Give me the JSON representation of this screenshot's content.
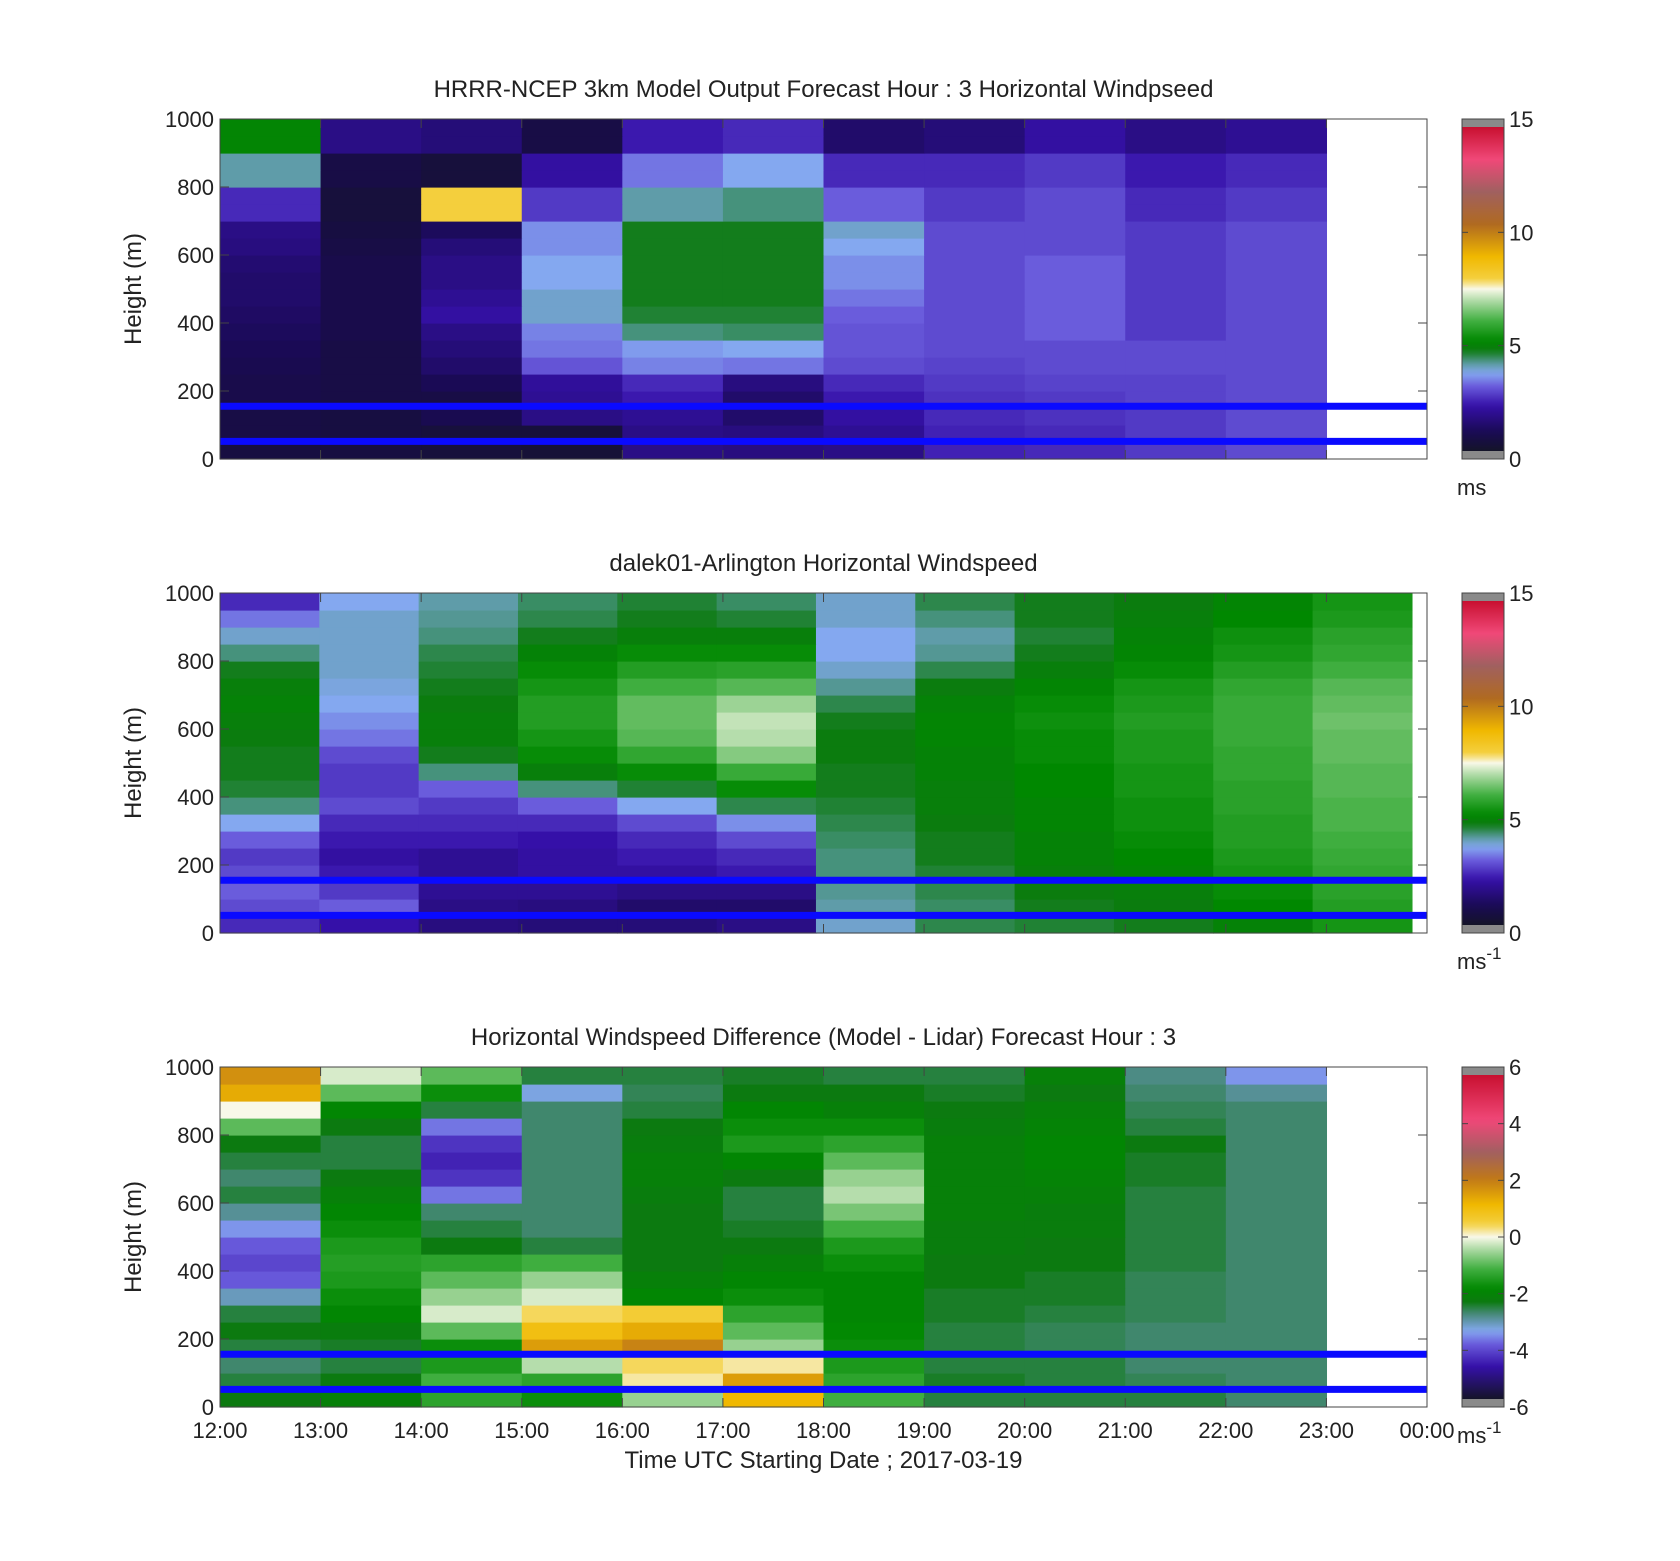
{
  "chart_data": [
    {
      "type": "heatmap",
      "title": "HRRR-NCEP 3km Model Output   Forecast Hour : 3 Horizontal Windpseed",
      "ylabel": "Height (m)",
      "xlabel": "",
      "ylim": [
        0,
        1000
      ],
      "y_ticks": [
        "0",
        "200",
        "400",
        "600",
        "800",
        "1000"
      ],
      "x_range_hours": [
        12,
        24
      ],
      "data_end_hour": 23,
      "colorbar": {
        "min": 0,
        "max": 15,
        "ticks": [
          "0",
          "5",
          "10",
          "15"
        ],
        "unit": "ms",
        "unit_sup": ""
      },
      "horizontal_lines_m": [
        155,
        52
      ],
      "line_color": "#0a0aff",
      "x_hours": [
        12,
        13,
        14,
        15,
        16,
        17,
        18,
        19,
        20,
        21,
        22
      ],
      "y_levels_m": [
        25,
        75,
        125,
        175,
        225,
        275,
        325,
        375,
        425,
        475,
        525,
        575,
        625,
        675,
        725,
        775,
        825,
        875,
        925,
        975
      ],
      "z": [
        [
          0.5,
          0.5,
          0.4,
          0.3,
          1.6,
          1.5,
          1.6,
          2.3,
          2.4,
          2.6,
          2.8
        ],
        [
          0.6,
          0.5,
          0.4,
          0.4,
          1.6,
          1.5,
          1.8,
          2.3,
          2.4,
          2.6,
          2.8
        ],
        [
          0.6,
          0.5,
          0.8,
          1.6,
          1.8,
          1.2,
          2.0,
          2.4,
          2.5,
          2.6,
          2.8
        ],
        [
          0.7,
          0.6,
          0.6,
          1.8,
          2.2,
          1.2,
          2.2,
          2.5,
          2.6,
          2.7,
          2.8
        ],
        [
          0.7,
          0.6,
          0.9,
          1.9,
          2.4,
          1.5,
          2.4,
          2.6,
          2.7,
          2.7,
          2.8
        ],
        [
          0.8,
          0.6,
          1.2,
          2.9,
          3.3,
          3.2,
          2.8,
          2.7,
          2.8,
          2.8,
          2.8
        ],
        [
          0.9,
          0.6,
          1.4,
          3.2,
          3.5,
          3.6,
          2.9,
          2.8,
          2.8,
          2.8,
          2.8
        ],
        [
          1.0,
          0.7,
          1.6,
          3.3,
          4.2,
          4.3,
          2.9,
          2.8,
          3.0,
          2.6,
          2.8
        ],
        [
          1.1,
          0.7,
          2.0,
          3.8,
          4.5,
          4.5,
          3.0,
          2.8,
          3.0,
          2.6,
          2.8
        ],
        [
          1.2,
          0.7,
          1.8,
          3.8,
          4.6,
          4.6,
          3.2,
          2.8,
          3.0,
          2.6,
          2.8
        ],
        [
          1.2,
          0.7,
          1.6,
          3.6,
          4.6,
          4.6,
          3.4,
          2.8,
          3.0,
          2.6,
          2.8
        ],
        [
          1.3,
          0.7,
          1.6,
          3.6,
          4.6,
          4.6,
          3.4,
          2.8,
          3.0,
          2.6,
          2.8
        ],
        [
          1.5,
          0.6,
          1.4,
          3.4,
          4.6,
          4.6,
          3.6,
          2.8,
          2.8,
          2.6,
          2.8
        ],
        [
          1.6,
          0.5,
          1.0,
          3.4,
          4.6,
          4.6,
          3.8,
          2.8,
          2.8,
          2.6,
          2.8
        ],
        [
          2.4,
          0.4,
          8.0,
          2.6,
          4.0,
          4.2,
          3.0,
          2.6,
          2.8,
          2.4,
          2.6
        ],
        [
          2.4,
          0.4,
          8.0,
          2.6,
          4.0,
          4.2,
          3.0,
          2.6,
          2.8,
          2.4,
          2.6
        ],
        [
          4.0,
          0.6,
          0.4,
          2.0,
          3.2,
          3.6,
          2.4,
          2.4,
          2.6,
          2.2,
          2.4
        ],
        [
          4.0,
          0.6,
          0.4,
          2.0,
          3.2,
          3.6,
          2.4,
          2.4,
          2.6,
          2.2,
          2.4
        ],
        [
          5.0,
          1.6,
          1.4,
          0.6,
          2.2,
          2.4,
          1.2,
          1.4,
          2.0,
          1.6,
          1.8
        ],
        [
          5.0,
          1.6,
          1.4,
          0.6,
          2.2,
          2.4,
          1.2,
          1.4,
          2.0,
          1.6,
          1.8
        ]
      ]
    },
    {
      "type": "heatmap",
      "title": "dalek01-Arlington  Horizontal Windspeed",
      "ylabel": "Height (m)",
      "xlabel": "",
      "ylim": [
        0,
        1000
      ],
      "y_ticks": [
        "0",
        "200",
        "400",
        "600",
        "800",
        "1000"
      ],
      "x_range_hours": [
        12,
        24
      ],
      "data_end_hour": 23.85,
      "colorbar": {
        "min": 0,
        "max": 15,
        "ticks": [
          "0",
          "5",
          "10",
          "15"
        ],
        "unit": "ms",
        "unit_sup": "-1"
      },
      "horizontal_lines_m": [
        155,
        52
      ],
      "line_color": "#0a0aff",
      "x_hours": [
        12,
        13,
        14,
        15,
        16,
        17,
        18,
        19,
        20,
        21,
        22,
        23
      ],
      "y_levels_m": [
        25,
        75,
        125,
        175,
        225,
        275,
        325,
        375,
        425,
        475,
        525,
        575,
        625,
        675,
        725,
        775,
        825,
        875,
        925,
        975
      ],
      "z": [
        [
          2.4,
          2.1,
          1.5,
          1.4,
          1.4,
          1.6,
          3.8,
          4.4,
          4.5,
          4.6,
          4.9,
          5.4
        ],
        [
          2.8,
          3.0,
          1.6,
          1.5,
          1.2,
          1.2,
          4.0,
          4.3,
          4.6,
          4.7,
          5.1,
          5.6
        ],
        [
          3.0,
          2.6,
          1.8,
          1.8,
          1.6,
          1.6,
          4.1,
          4.4,
          4.7,
          4.8,
          5.2,
          5.7
        ],
        [
          2.8,
          2.2,
          1.8,
          2.0,
          2.0,
          2.2,
          4.2,
          4.5,
          4.8,
          5.0,
          5.4,
          5.8
        ],
        [
          2.6,
          2.0,
          1.8,
          2.0,
          2.2,
          2.4,
          4.2,
          4.6,
          4.9,
          5.1,
          5.5,
          5.9
        ],
        [
          3.0,
          2.2,
          2.2,
          2.1,
          2.4,
          2.8,
          4.3,
          4.6,
          4.9,
          5.2,
          5.6,
          6.0
        ],
        [
          3.6,
          2.4,
          2.4,
          2.4,
          2.8,
          3.4,
          4.4,
          4.7,
          5.0,
          5.3,
          5.6,
          6.1
        ],
        [
          4.2,
          2.8,
          2.6,
          3.0,
          3.6,
          4.4,
          4.5,
          4.8,
          5.0,
          5.3,
          5.7,
          6.1
        ],
        [
          4.5,
          2.6,
          3.0,
          4.2,
          4.5,
          5.2,
          4.6,
          4.8,
          5.1,
          5.4,
          5.7,
          6.2
        ],
        [
          4.6,
          2.6,
          4.2,
          4.8,
          5.2,
          5.9,
          4.6,
          4.9,
          5.1,
          5.4,
          5.8,
          6.2
        ],
        [
          4.6,
          2.8,
          4.6,
          5.2,
          5.8,
          6.6,
          4.7,
          4.9,
          5.2,
          5.5,
          5.8,
          6.3
        ],
        [
          4.7,
          3.2,
          4.8,
          5.4,
          6.2,
          7.0,
          4.7,
          5.0,
          5.2,
          5.5,
          5.9,
          6.3
        ],
        [
          4.8,
          3.4,
          4.8,
          5.6,
          6.3,
          7.1,
          4.6,
          5.0,
          5.3,
          5.6,
          5.9,
          6.4
        ],
        [
          4.9,
          3.6,
          4.7,
          5.6,
          6.3,
          6.8,
          4.4,
          4.9,
          5.2,
          5.5,
          5.9,
          6.3
        ],
        [
          4.8,
          3.7,
          4.6,
          5.4,
          6.0,
          6.2,
          4.1,
          4.7,
          5.0,
          5.4,
          5.8,
          6.2
        ],
        [
          4.6,
          3.8,
          4.5,
          5.2,
          5.6,
          5.7,
          3.8,
          4.4,
          4.8,
          5.2,
          5.6,
          6.0
        ],
        [
          4.2,
          3.8,
          4.4,
          4.9,
          5.2,
          5.2,
          3.6,
          4.1,
          4.6,
          5.0,
          5.4,
          5.8
        ],
        [
          3.8,
          3.8,
          4.2,
          4.6,
          4.8,
          4.8,
          3.6,
          4.0,
          4.5,
          4.9,
          5.3,
          5.7
        ],
        [
          3.2,
          3.8,
          4.1,
          4.4,
          4.6,
          4.5,
          3.8,
          4.2,
          4.6,
          4.8,
          5.1,
          5.5
        ],
        [
          2.4,
          3.6,
          4.0,
          4.3,
          4.5,
          4.3,
          3.8,
          4.4,
          4.6,
          4.7,
          5.0,
          5.4
        ]
      ]
    },
    {
      "type": "heatmap",
      "title": "Horizontal Windspeed Difference (Model - Lidar) Forecast Hour : 3",
      "ylabel": "Height (m)",
      "xlabel": "Time UTC  Starting Date ; 2017-03-19",
      "ylim": [
        0,
        1000
      ],
      "y_ticks": [
        "0",
        "200",
        "400",
        "600",
        "800",
        "1000"
      ],
      "x_range_hours": [
        12,
        24
      ],
      "x_ticks": [
        "12:00",
        "13:00",
        "14:00",
        "15:00",
        "16:00",
        "17:00",
        "18:00",
        "19:00",
        "20:00",
        "21:00",
        "22:00",
        "23:00",
        "00:00"
      ],
      "data_end_hour": 23,
      "colorbar": {
        "min": -6,
        "max": 6,
        "ticks": [
          "-6",
          "-4",
          "-2",
          "0",
          "2",
          "4",
          "6"
        ],
        "unit": "ms",
        "unit_sup": "-1"
      },
      "horizontal_lines_m": [
        155,
        52
      ],
      "line_color": "#0a0aff",
      "x_hours": [
        12,
        13,
        14,
        15,
        16,
        17,
        18,
        19,
        20,
        21,
        22
      ],
      "y_levels_m": [
        25,
        75,
        125,
        175,
        225,
        275,
        325,
        375,
        425,
        475,
        525,
        575,
        625,
        675,
        725,
        775,
        825,
        875,
        925,
        975
      ],
      "z": [
        [
          -2.4,
          -2.2,
          -1.4,
          -1.8,
          -0.6,
          1.2,
          -1.2,
          -2.6,
          -2.6,
          -2.6,
          -2.8
        ],
        [
          -2.6,
          -2.4,
          -1.2,
          -1.4,
          0.2,
          1.6,
          -1.4,
          -2.5,
          -2.6,
          -2.7,
          -2.8
        ],
        [
          -2.8,
          -2.6,
          -1.6,
          -0.4,
          0.4,
          0.2,
          -1.6,
          -2.6,
          -2.6,
          -2.8,
          -2.8
        ],
        [
          -2.6,
          -2.5,
          -1.8,
          1.6,
          2.0,
          -0.6,
          -1.8,
          -2.6,
          -2.7,
          -2.8,
          -2.8
        ],
        [
          -2.4,
          -2.3,
          -1.0,
          1.0,
          1.4,
          -1.0,
          -1.9,
          -2.6,
          -2.7,
          -2.8,
          -2.8
        ],
        [
          -2.6,
          -2.0,
          -0.2,
          0.4,
          0.6,
          -1.4,
          -2.0,
          -2.5,
          -2.6,
          -2.7,
          -2.8
        ],
        [
          -3.2,
          -1.8,
          -0.6,
          -0.2,
          -2.0,
          -1.8,
          -2.0,
          -2.5,
          -2.5,
          -2.7,
          -2.8
        ],
        [
          -4.0,
          -1.6,
          -1.0,
          -0.6,
          -2.2,
          -2.0,
          -2.0,
          -2.4,
          -2.5,
          -2.7,
          -2.8
        ],
        [
          -4.2,
          -1.5,
          -1.4,
          -1.2,
          -2.4,
          -2.2,
          -1.8,
          -2.4,
          -2.4,
          -2.6,
          -2.8
        ],
        [
          -4.0,
          -1.6,
          -2.4,
          -2.6,
          -2.4,
          -2.4,
          -1.6,
          -2.3,
          -2.4,
          -2.6,
          -2.8
        ],
        [
          -3.6,
          -1.8,
          -2.6,
          -2.8,
          -2.4,
          -2.5,
          -1.2,
          -2.3,
          -2.3,
          -2.6,
          -2.8
        ],
        [
          -3.0,
          -2.0,
          -2.8,
          -2.8,
          -2.4,
          -2.6,
          -0.8,
          -2.2,
          -2.3,
          -2.6,
          -2.8
        ],
        [
          -2.6,
          -2.2,
          -3.8,
          -2.8,
          -2.3,
          -2.6,
          -0.4,
          -2.2,
          -2.2,
          -2.6,
          -2.8
        ],
        [
          -2.8,
          -2.4,
          -4.4,
          -2.8,
          -2.2,
          -2.4,
          -0.6,
          -2.2,
          -2.1,
          -2.5,
          -2.8
        ],
        [
          -2.6,
          -2.6,
          -4.6,
          -2.8,
          -2.2,
          -2.0,
          -1.0,
          -2.2,
          -2.0,
          -2.5,
          -2.8
        ],
        [
          -2.4,
          -2.6,
          -4.4,
          -2.8,
          -2.3,
          -1.6,
          -1.4,
          -2.2,
          -2.0,
          -2.4,
          -2.8
        ],
        [
          -1.0,
          -2.4,
          -3.8,
          -2.8,
          -2.4,
          -1.8,
          -1.8,
          -2.3,
          -2.1,
          -2.6,
          -2.8
        ],
        [
          0.0,
          -2.0,
          -2.6,
          -2.8,
          -2.6,
          -2.0,
          -2.2,
          -2.4,
          -2.2,
          -2.7,
          -2.8
        ],
        [
          1.4,
          -1.0,
          -1.8,
          -3.4,
          -2.7,
          -2.4,
          -2.4,
          -2.5,
          -2.4,
          -2.8,
          -3.0
        ],
        [
          1.8,
          -0.2,
          -1.0,
          -2.6,
          -2.6,
          -2.5,
          -2.6,
          -2.6,
          -2.2,
          -2.9,
          -3.6
        ]
      ]
    }
  ]
}
